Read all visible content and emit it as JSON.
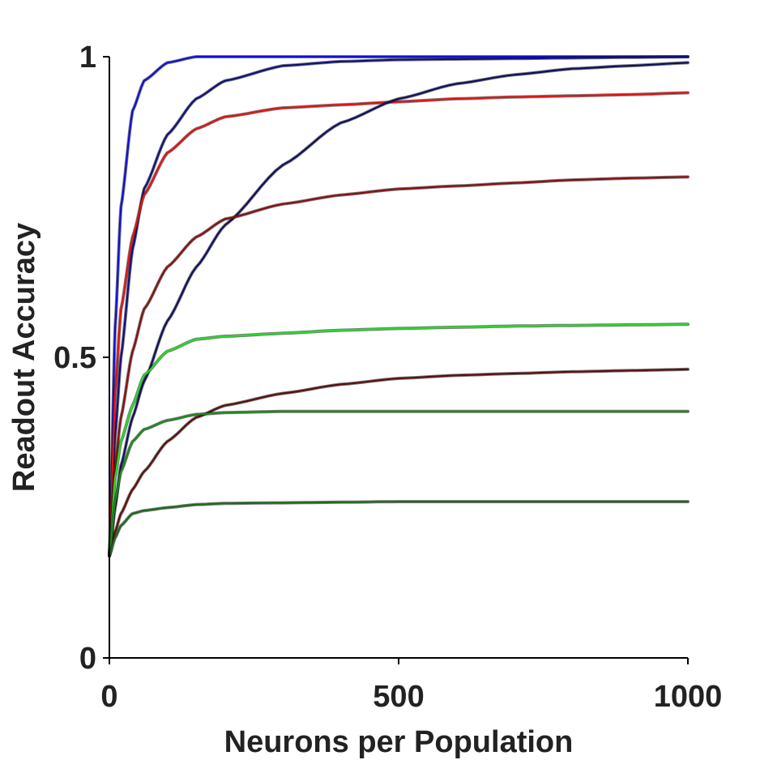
{
  "chart_data": {
    "type": "line",
    "title": "",
    "xlabel": "Neurons per Population",
    "ylabel": "Readout Accuracy",
    "xlim": [
      0,
      1000
    ],
    "ylim": [
      0,
      1
    ],
    "xticks": [
      0,
      500,
      1000
    ],
    "xtick_labels": [
      "0",
      "500",
      "1000"
    ],
    "yticks": [
      0,
      0.5,
      1
    ],
    "ytick_labels": [
      "0",
      "0.5",
      "1"
    ],
    "grid": false,
    "legend": "none",
    "x": [
      0,
      10,
      20,
      40,
      60,
      100,
      150,
      200,
      300,
      400,
      500,
      600,
      700,
      800,
      900,
      1000
    ],
    "series": [
      {
        "color": "#1010d8",
        "values": [
          0.17,
          0.55,
          0.75,
          0.91,
          0.96,
          0.99,
          1.0,
          1.0,
          1.0,
          1.0,
          1.0,
          1.0,
          1.0,
          1.0,
          1.0,
          1.0
        ]
      },
      {
        "color": "#101080",
        "values": [
          0.17,
          0.37,
          0.5,
          0.68,
          0.78,
          0.87,
          0.93,
          0.96,
          0.985,
          0.992,
          0.995,
          0.996,
          0.997,
          0.998,
          0.999,
          1.0
        ]
      },
      {
        "color": "#e81010",
        "values": [
          0.17,
          0.44,
          0.58,
          0.7,
          0.77,
          0.84,
          0.88,
          0.9,
          0.915,
          0.92,
          0.925,
          0.93,
          0.933,
          0.935,
          0.937,
          0.94
        ]
      },
      {
        "color": "#101060",
        "values": [
          0.17,
          0.25,
          0.32,
          0.4,
          0.46,
          0.56,
          0.65,
          0.72,
          0.82,
          0.89,
          0.93,
          0.955,
          0.97,
          0.98,
          0.985,
          0.99
        ]
      },
      {
        "color": "#8a1010",
        "values": [
          0.17,
          0.32,
          0.4,
          0.51,
          0.58,
          0.65,
          0.7,
          0.73,
          0.755,
          0.77,
          0.78,
          0.785,
          0.79,
          0.795,
          0.798,
          0.8
        ]
      },
      {
        "color": "#22dd22",
        "values": [
          0.17,
          0.3,
          0.36,
          0.42,
          0.47,
          0.51,
          0.53,
          0.535,
          0.54,
          0.545,
          0.548,
          0.55,
          0.552,
          0.553,
          0.554,
          0.555
        ]
      },
      {
        "color": "#5a1010",
        "values": [
          0.17,
          0.21,
          0.24,
          0.28,
          0.31,
          0.36,
          0.4,
          0.42,
          0.44,
          0.455,
          0.465,
          0.47,
          0.473,
          0.476,
          0.478,
          0.48
        ]
      },
      {
        "color": "#1a8a1a",
        "values": [
          0.17,
          0.26,
          0.31,
          0.36,
          0.38,
          0.395,
          0.405,
          0.408,
          0.41,
          0.41,
          0.41,
          0.41,
          0.41,
          0.41,
          0.41,
          0.41
        ]
      },
      {
        "color": "#1e6a1e",
        "values": [
          0.17,
          0.2,
          0.22,
          0.24,
          0.245,
          0.25,
          0.255,
          0.257,
          0.258,
          0.259,
          0.26,
          0.26,
          0.26,
          0.26,
          0.26,
          0.26
        ]
      }
    ]
  }
}
